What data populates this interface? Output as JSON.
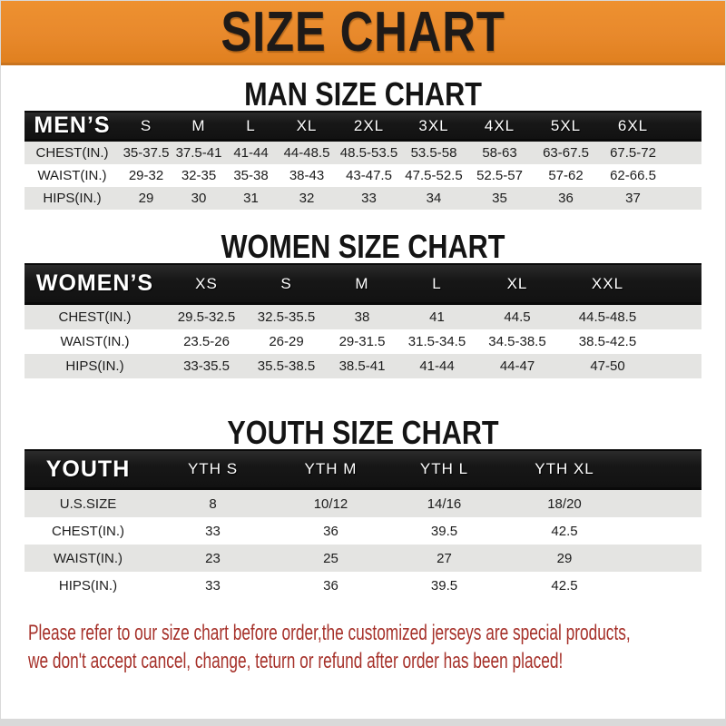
{
  "banner": {
    "title": "SIZE CHART"
  },
  "colors": {
    "banner_bg": "#E8892C",
    "header_bg": "#171717",
    "row_shade_bg": "#E4E4E2",
    "note_color": "#A6312A"
  },
  "men": {
    "heading": "MAN SIZE CHART",
    "header_label": "MEN’S",
    "sizes": [
      "S",
      "M",
      "L",
      "XL",
      "2XL",
      "3XL",
      "4XL",
      "5XL",
      "6XL"
    ],
    "rows": [
      {
        "label": "CHEST(IN.)",
        "values": [
          "35-37.5",
          "37.5-41",
          "41-44",
          "44-48.5",
          "48.5-53.5",
          "53.5-58",
          "58-63",
          "63-67.5",
          "67.5-72"
        ]
      },
      {
        "label": "WAIST(IN.)",
        "values": [
          "29-32",
          "32-35",
          "35-38",
          "38-43",
          "43-47.5",
          "47.5-52.5",
          "52.5-57",
          "57-62",
          "62-66.5"
        ]
      },
      {
        "label": "HIPS(IN.)",
        "values": [
          "29",
          "30",
          "31",
          "32",
          "33",
          "34",
          "35",
          "36",
          "37"
        ]
      }
    ]
  },
  "women": {
    "heading": "WOMEN SIZE CHART",
    "header_label": "WOMEN’S",
    "sizes": [
      "XS",
      "S",
      "M",
      "L",
      "XL",
      "XXL"
    ],
    "rows": [
      {
        "label": "CHEST(IN.)",
        "values": [
          "29.5-32.5",
          "32.5-35.5",
          "38",
          "41",
          "44.5",
          "44.5-48.5"
        ]
      },
      {
        "label": "WAIST(IN.)",
        "values": [
          "23.5-26",
          "26-29",
          "29-31.5",
          "31.5-34.5",
          "34.5-38.5",
          "38.5-42.5"
        ]
      },
      {
        "label": "HIPS(IN.)",
        "values": [
          "33-35.5",
          "35.5-38.5",
          "38.5-41",
          "41-44",
          "44-47",
          "47-50"
        ]
      }
    ]
  },
  "youth": {
    "heading": "YOUTH SIZE CHART",
    "header_label": "YOUTH",
    "sizes": [
      "YTH S",
      "YTH M",
      "YTH L",
      "YTH XL"
    ],
    "rows": [
      {
        "label": "U.S.SIZE",
        "values": [
          "8",
          "10/12",
          "14/16",
          "18/20"
        ]
      },
      {
        "label": "CHEST(IN.)",
        "values": [
          "33",
          "36",
          "39.5",
          "42.5"
        ]
      },
      {
        "label": "WAIST(IN.)",
        "values": [
          "23",
          "25",
          "27",
          "29"
        ]
      },
      {
        "label": "HIPS(IN.)",
        "values": [
          "33",
          "36",
          "39.5",
          "42.5"
        ]
      }
    ]
  },
  "note": {
    "lines": [
      "Please refer to our size chart before order,the customized jerseys are special products,",
      "we don't accept cancel, change, teturn or refund after order has been placed!"
    ]
  }
}
